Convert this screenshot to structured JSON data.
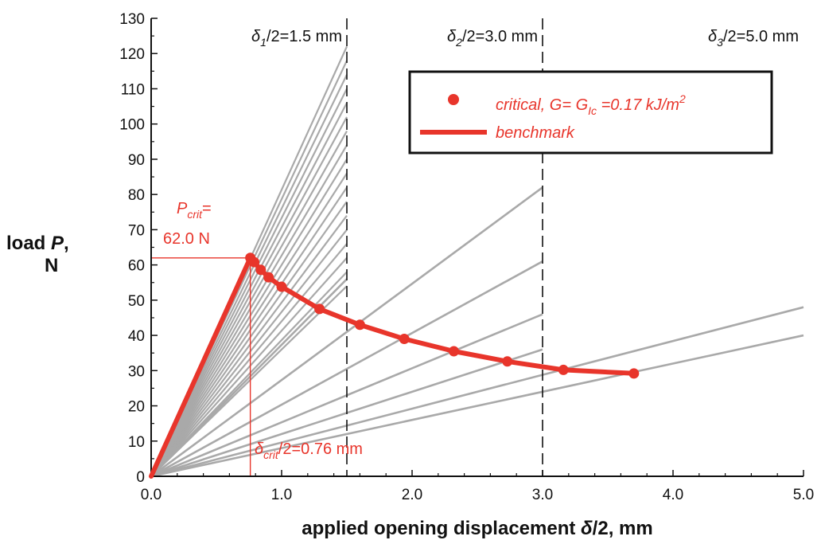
{
  "chart_data": {
    "type": "line",
    "xlabel_main": "applied opening displacement ",
    "xlabel_symbol": "δ",
    "xlabel_tail": "/2, mm",
    "ylabel_line1_text": "load ",
    "ylabel_line1_symbol": "P",
    "ylabel_line1_tail": ",",
    "ylabel_line2": "N",
    "xlim": [
      0,
      5
    ],
    "ylim": [
      0,
      130
    ],
    "x_ticks": [
      0,
      1,
      2,
      3,
      4,
      5
    ],
    "x_tick_labels": [
      "0.0",
      "1.0",
      "2.0",
      "3.0",
      "4.0",
      "5.0"
    ],
    "y_ticks": [
      0,
      10,
      20,
      30,
      40,
      50,
      60,
      70,
      80,
      90,
      100,
      110,
      120,
      130
    ],
    "y_tick_labels": [
      "0",
      "10",
      "20",
      "30",
      "40",
      "50",
      "60",
      "70",
      "80",
      "90",
      "100",
      "110",
      "120",
      "130"
    ],
    "vertical_lines": [
      {
        "x": 1.5,
        "label_sym": "δ",
        "label_sub": "1",
        "label_rest": "/2=1.5 mm"
      },
      {
        "x": 3.0,
        "label_sym": "δ",
        "label_sub": "2",
        "label_rest": "/2=3.0 mm"
      },
      {
        "x": 5.0,
        "label_sym": "δ",
        "label_sub": "3",
        "label_rest": "/2=5.0 mm"
      }
    ],
    "gray_lines": [
      {
        "x_end": 1.5,
        "slopes": [
          82,
          78,
          74,
          70,
          66,
          62,
          58,
          54
        ]
      },
      {
        "x_end": 1.5,
        "y_ends": [
          56
        ]
      },
      {
        "x_end": 3.0,
        "y_ends": [
          82,
          61,
          46,
          36
        ]
      },
      {
        "x_end": 5.0,
        "y_ends": [
          48,
          40
        ]
      }
    ],
    "critical_points": {
      "x": [
        0.76,
        0.79,
        0.84,
        0.9,
        1.0,
        1.29,
        1.6,
        1.94,
        2.32,
        2.73,
        3.16,
        3.7
      ],
      "y": [
        62.0,
        60.8,
        58.6,
        56.5,
        53.8,
        47.5,
        43.0,
        39.0,
        35.5,
        32.6,
        30.2,
        29.2
      ]
    },
    "benchmark": {
      "x": [
        0,
        0.76,
        0.79,
        0.84,
        0.9,
        1.0,
        1.29,
        1.6,
        1.94,
        2.32,
        2.73,
        3.16,
        3.7
      ],
      "y": [
        0,
        62.0,
        60.8,
        58.6,
        56.5,
        53.8,
        47.5,
        43.0,
        39.0,
        35.5,
        32.6,
        30.2,
        29.2
      ]
    },
    "p_crit": {
      "x": 0.76,
      "y": 62.0,
      "label_sym": "P",
      "label_sub": "crit",
      "label_eq": "=",
      "label_value": "62.0 N"
    },
    "delta_crit": {
      "label_sym": "δ",
      "label_sub": "crit",
      "label_rest": "/2=0.76 mm"
    },
    "legend": {
      "critical_text": "critical, G= G",
      "critical_sub": "Ic",
      "critical_tail": " =0.17 kJ/m",
      "critical_sup": "2",
      "benchmark_text": "benchmark"
    },
    "colors": {
      "red": "#e8352b",
      "gray": "#a9a9a9",
      "axis": "#111111"
    }
  }
}
